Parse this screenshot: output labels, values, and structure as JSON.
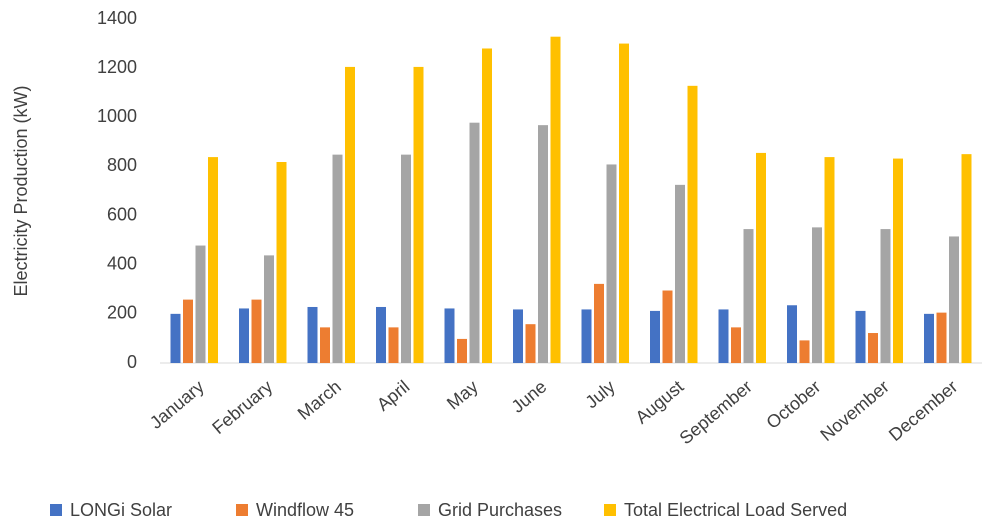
{
  "chart_data": {
    "type": "bar",
    "y_label": "Electricity Production (kW)",
    "categories": [
      "January",
      "February",
      "March",
      "April",
      "May",
      "June",
      "July",
      "August",
      "September",
      "October",
      "November",
      "December"
    ],
    "series": [
      {
        "name": "LONGi Solar",
        "color": "#4472c4",
        "values": [
          200,
          222,
          228,
          228,
          222,
          218,
          218,
          212,
          218,
          235,
          212,
          200
        ]
      },
      {
        "name": "Windflow 45",
        "color": "#ed7d31",
        "values": [
          258,
          258,
          145,
          145,
          98,
          158,
          322,
          295,
          145,
          92,
          122,
          205
        ]
      },
      {
        "name": "Grid Purchases",
        "color": "#a5a5a5",
        "values": [
          478,
          438,
          848,
          848,
          978,
          968,
          808,
          725,
          545,
          552,
          545,
          515
        ]
      },
      {
        "name": "Total Electrical Load Served",
        "color": "#ffc000",
        "values": [
          838,
          818,
          1205,
          1205,
          1280,
          1328,
          1300,
          1128,
          855,
          838,
          832,
          850
        ]
      }
    ],
    "ylim": [
      0,
      1400
    ],
    "yticks": [
      0,
      200,
      400,
      600,
      800,
      1000,
      1200,
      1400
    ],
    "legend": "bottom"
  }
}
